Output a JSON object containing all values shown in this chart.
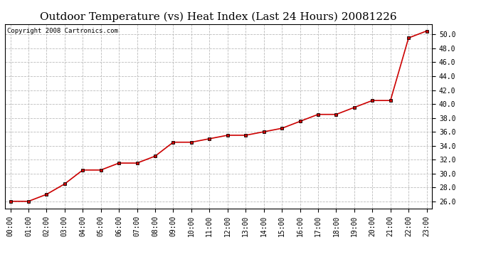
{
  "title": "Outdoor Temperature (vs) Heat Index (Last 24 Hours) 20081226",
  "copyright_text": "Copyright 2008 Cartronics.com",
  "x_labels": [
    "00:00",
    "01:00",
    "02:00",
    "03:00",
    "04:00",
    "05:00",
    "06:00",
    "07:00",
    "08:00",
    "09:00",
    "10:00",
    "11:00",
    "12:00",
    "13:00",
    "14:00",
    "15:00",
    "16:00",
    "17:00",
    "18:00",
    "19:00",
    "20:00",
    "21:00",
    "22:00",
    "23:00"
  ],
  "y_values": [
    26.0,
    26.0,
    27.0,
    28.5,
    30.5,
    30.5,
    31.5,
    31.5,
    32.5,
    34.5,
    34.5,
    35.0,
    35.5,
    35.5,
    36.0,
    36.5,
    37.5,
    38.5,
    38.5,
    39.5,
    40.5,
    40.5,
    49.5,
    50.5
  ],
  "ylim_min": 25.0,
  "ylim_max": 51.5,
  "y_ticks": [
    26.0,
    28.0,
    30.0,
    32.0,
    34.0,
    36.0,
    38.0,
    40.0,
    42.0,
    44.0,
    46.0,
    48.0,
    50.0
  ],
  "line_color": "#cc0000",
  "marker_color": "#000000",
  "bg_color": "#ffffff",
  "grid_color": "#bbbbbb",
  "title_fontsize": 11,
  "tick_fontsize": 7,
  "copyright_fontsize": 6.5
}
